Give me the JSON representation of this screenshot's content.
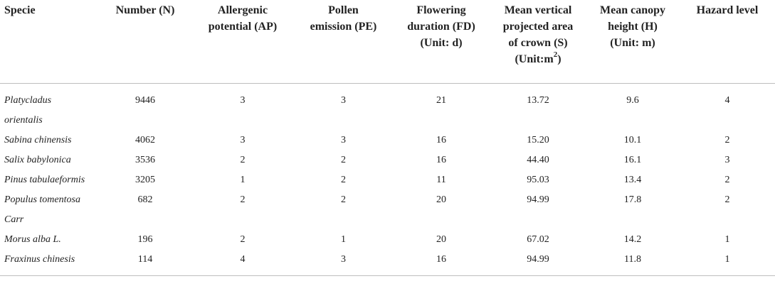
{
  "headers": [
    {
      "line1": "Specie",
      "line2": "",
      "line3": "",
      "line4": ""
    },
    {
      "line1": "Number (N)",
      "line2": "",
      "line3": "",
      "line4": ""
    },
    {
      "line1": "Allergenic",
      "line2": "potential (AP)",
      "line3": "",
      "line4": ""
    },
    {
      "line1": "Pollen",
      "line2": "emission (PE)",
      "line3": "",
      "line4": ""
    },
    {
      "line1": "Flowering",
      "line2": "duration (FD)",
      "line3": "(Unit: d)",
      "line4": ""
    },
    {
      "line1": "Mean vertical",
      "line2": "projected area",
      "line3": "of crown (S)",
      "line4": "(Unit:m",
      "sup": "2",
      "close": ")"
    },
    {
      "line1": "Mean canopy",
      "line2": "height (H)",
      "line3": "(Unit: m)",
      "line4": ""
    },
    {
      "line1": "Hazard level",
      "line2": "",
      "line3": "",
      "line4": ""
    }
  ],
  "rows": [
    {
      "species_line1": "Platycladus",
      "species_line2": "orientalis",
      "n": "9446",
      "ap": "3",
      "pe": "3",
      "fd": "21",
      "s": "13.72",
      "h": "9.6",
      "hazard": "4"
    },
    {
      "species_line1": "Sabina chinensis",
      "species_line2": "",
      "n": "4062",
      "ap": "3",
      "pe": "3",
      "fd": "16",
      "s": "15.20",
      "h": "10.1",
      "hazard": "2"
    },
    {
      "species_line1": "Salix babylonica",
      "species_line2": "",
      "n": "3536",
      "ap": "2",
      "pe": "2",
      "fd": "16",
      "s": "44.40",
      "h": "16.1",
      "hazard": "3"
    },
    {
      "species_line1": "Pinus tabulaeformis",
      "species_line2": "",
      "n": "3205",
      "ap": "1",
      "pe": "2",
      "fd": "11",
      "s": "95.03",
      "h": "13.4",
      "hazard": "2"
    },
    {
      "species_line1": "Populus tomentosa",
      "species_line2": "Carr",
      "n": "682",
      "ap": "2",
      "pe": "2",
      "fd": "20",
      "s": "94.99",
      "h": "17.8",
      "hazard": "2"
    },
    {
      "species_line1": "Morus alba L.",
      "species_line2": "",
      "n": "196",
      "ap": "2",
      "pe": "1",
      "fd": "20",
      "s": "67.02",
      "h": "14.2",
      "hazard": "1"
    },
    {
      "species_line1": "Fraxinus chinesis",
      "species_line2": "",
      "n": "114",
      "ap": "4",
      "pe": "3",
      "fd": "16",
      "s": "94.99",
      "h": "11.8",
      "hazard": "1"
    }
  ]
}
